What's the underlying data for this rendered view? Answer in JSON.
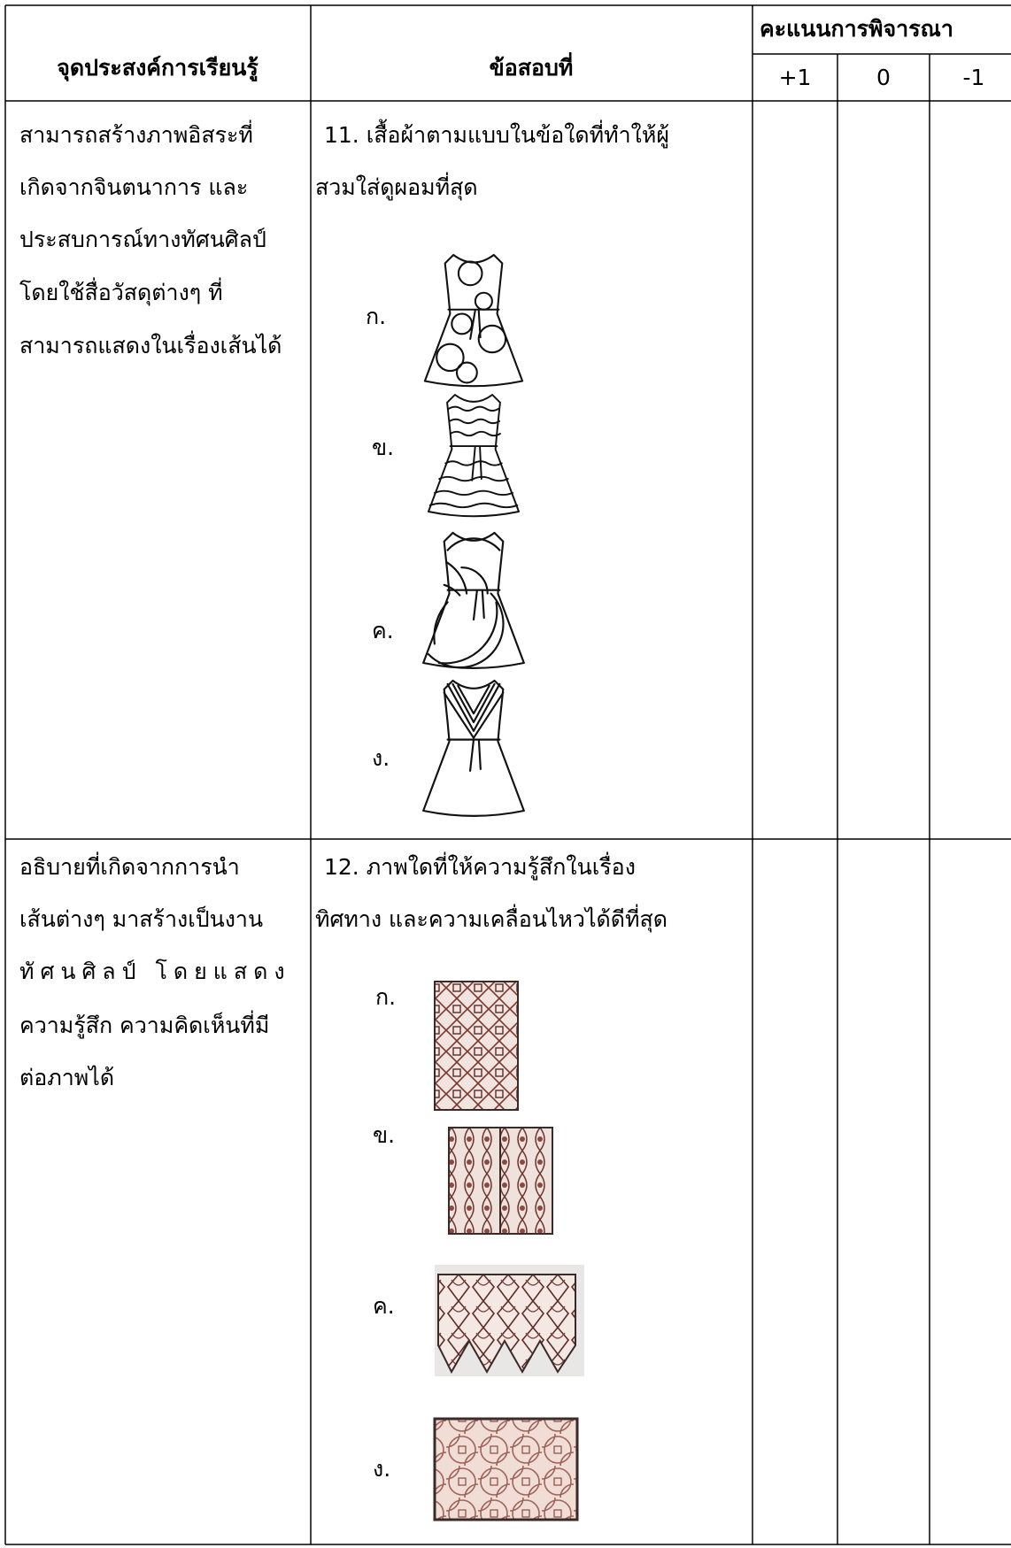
{
  "table": {
    "headers": {
      "objective": "จุดประสงค์การเรียนรู้",
      "item": "ข้อสอบที่",
      "score": "คะแนนการพิจารณา",
      "score_columns": [
        "+1",
        "0",
        "-1"
      ]
    },
    "rows": [
      {
        "objective_lines": [
          "สามารถสร้างภาพอิสระที่",
          "เกิดจากจินตนาการ และ",
          "ประสบการณ์ทางทัศนศิลป์",
          "โดยใช้สื่อวัสดุต่างๆ ที่",
          "สามารถแสดงในเรื่องเส้นได้"
        ],
        "question_lines": [
          "11. เสื้อผ้าตามแบบในข้อใดที่ทำให้ผู้",
          "สวมใส่ดูผอมที่สุด"
        ],
        "choices": [
          "ก.",
          "ข.",
          "ค.",
          "ง."
        ]
      },
      {
        "objective_lines": [
          "อธิบายที่เกิดจากการนำ",
          "เส้นต่างๆ มาสร้างเป็นงาน",
          "ทัศนศิลป์ โดยแสดง",
          "ความรู้สึก ความคิดเห็นที่มี",
          "ต่อภาพได้"
        ],
        "question_lines": [
          "12. ภาพใดที่ให้ความรู้สึกในเรื่อง",
          "ทิศทาง และความเคลื่อนไหวได้ดีที่สุด"
        ],
        "choices": [
          "ก.",
          "ข.",
          "ค.",
          "ง."
        ]
      }
    ]
  }
}
